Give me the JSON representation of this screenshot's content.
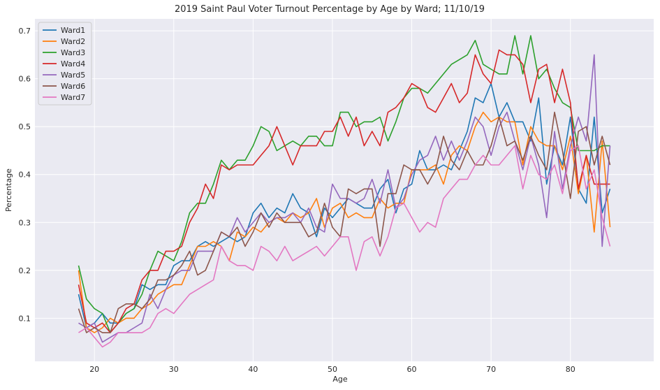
{
  "chart_data": {
    "type": "line",
    "title": "2019 Saint Paul Voter Turnout Percentage by Age by Ward; 11/10/19",
    "xlabel": "Age",
    "ylabel": "Percentage",
    "xlim": [
      12.5,
      90.5
    ],
    "ylim": [
      0.01,
      0.725
    ],
    "x_ticks": [
      20,
      30,
      40,
      50,
      60,
      70,
      80
    ],
    "y_ticks": [
      0.1,
      0.2,
      0.3,
      0.4,
      0.5,
      0.6,
      0.7
    ],
    "grid": true,
    "legend_position": "upper-left",
    "x": [
      18,
      19,
      20,
      21,
      22,
      23,
      24,
      25,
      26,
      27,
      28,
      29,
      30,
      31,
      32,
      33,
      34,
      35,
      36,
      37,
      38,
      39,
      40,
      41,
      42,
      43,
      44,
      45,
      46,
      47,
      48,
      49,
      50,
      51,
      52,
      53,
      54,
      55,
      56,
      57,
      58,
      59,
      60,
      61,
      62,
      63,
      64,
      65,
      66,
      67,
      68,
      69,
      70,
      71,
      72,
      73,
      74,
      75,
      76,
      77,
      78,
      79,
      80,
      81,
      82,
      83,
      84,
      85
    ],
    "series": [
      {
        "name": "Ward1",
        "color": "#1f77b4",
        "values": [
          0.15,
          0.08,
          0.09,
          0.11,
          0.09,
          0.09,
          0.11,
          0.12,
          0.17,
          0.16,
          0.17,
          0.17,
          0.21,
          0.22,
          0.22,
          0.25,
          0.26,
          0.25,
          0.26,
          0.27,
          0.26,
          0.27,
          0.32,
          0.34,
          0.31,
          0.33,
          0.32,
          0.36,
          0.33,
          0.32,
          0.27,
          0.33,
          0.31,
          0.33,
          0.35,
          0.34,
          0.33,
          0.33,
          0.37,
          0.39,
          0.32,
          0.37,
          0.38,
          0.45,
          0.41,
          0.41,
          0.42,
          0.41,
          0.45,
          0.49,
          0.56,
          0.55,
          0.59,
          0.52,
          0.55,
          0.51,
          0.51,
          0.47,
          0.56,
          0.38,
          0.46,
          0.42,
          0.52,
          0.37,
          0.34,
          0.52,
          0.32,
          0.37
        ]
      },
      {
        "name": "Ward2",
        "color": "#ff7f0e",
        "values": [
          0.2,
          0.08,
          0.07,
          0.08,
          0.1,
          0.09,
          0.1,
          0.1,
          0.12,
          0.13,
          0.15,
          0.16,
          0.17,
          0.17,
          0.21,
          0.25,
          0.25,
          0.26,
          0.25,
          0.22,
          0.28,
          0.27,
          0.29,
          0.28,
          0.3,
          0.31,
          0.3,
          0.32,
          0.31,
          0.32,
          0.35,
          0.29,
          0.33,
          0.34,
          0.31,
          0.32,
          0.31,
          0.31,
          0.35,
          0.33,
          0.34,
          0.34,
          0.41,
          0.41,
          0.41,
          0.42,
          0.38,
          0.44,
          0.46,
          0.45,
          0.5,
          0.53,
          0.51,
          0.52,
          0.51,
          0.51,
          0.42,
          0.5,
          0.47,
          0.46,
          0.46,
          0.41,
          0.48,
          0.36,
          0.44,
          0.28,
          0.47,
          0.29
        ]
      },
      {
        "name": "Ward3",
        "color": "#2ca02c",
        "values": [
          0.21,
          0.14,
          0.12,
          0.11,
          0.07,
          0.09,
          0.11,
          0.12,
          0.15,
          0.2,
          0.24,
          0.23,
          0.22,
          0.26,
          0.32,
          0.34,
          0.34,
          0.38,
          0.43,
          0.41,
          0.43,
          0.43,
          0.46,
          0.5,
          0.49,
          0.45,
          0.46,
          0.47,
          0.46,
          0.48,
          0.48,
          0.46,
          0.46,
          0.53,
          0.53,
          0.5,
          0.51,
          0.51,
          0.52,
          0.47,
          0.51,
          0.56,
          0.58,
          0.58,
          0.57,
          0.59,
          0.61,
          0.63,
          0.64,
          0.65,
          0.68,
          0.63,
          0.62,
          0.61,
          0.61,
          0.69,
          0.61,
          0.69,
          0.6,
          0.62,
          0.58,
          0.55,
          0.54,
          0.45,
          0.45,
          0.45,
          0.46,
          0.46
        ]
      },
      {
        "name": "Ward4",
        "color": "#d62728",
        "values": [
          0.17,
          0.09,
          0.08,
          0.09,
          0.07,
          0.09,
          0.12,
          0.13,
          0.18,
          0.2,
          0.2,
          0.24,
          0.24,
          0.25,
          0.3,
          0.33,
          0.38,
          0.35,
          0.42,
          0.41,
          0.42,
          0.42,
          0.42,
          0.44,
          0.46,
          0.5,
          0.46,
          0.42,
          0.46,
          0.46,
          0.46,
          0.49,
          0.49,
          0.52,
          0.48,
          0.52,
          0.46,
          0.49,
          0.46,
          0.53,
          0.54,
          0.56,
          0.59,
          0.58,
          0.54,
          0.53,
          0.56,
          0.59,
          0.55,
          0.57,
          0.65,
          0.61,
          0.59,
          0.66,
          0.65,
          0.65,
          0.63,
          0.55,
          0.62,
          0.63,
          0.55,
          0.62,
          0.55,
          0.37,
          0.44,
          0.38,
          0.38,
          0.38
        ]
      },
      {
        "name": "Ward5",
        "color": "#9467bd",
        "values": [
          0.09,
          0.08,
          0.09,
          0.05,
          0.06,
          0.07,
          0.07,
          0.08,
          0.09,
          0.15,
          0.12,
          0.16,
          0.19,
          0.2,
          0.2,
          0.24,
          0.24,
          0.24,
          0.28,
          0.27,
          0.31,
          0.28,
          0.3,
          0.32,
          0.3,
          0.31,
          0.31,
          0.32,
          0.3,
          0.33,
          0.29,
          0.28,
          0.38,
          0.35,
          0.35,
          0.34,
          0.35,
          0.39,
          0.34,
          0.41,
          0.33,
          0.35,
          0.4,
          0.43,
          0.44,
          0.48,
          0.43,
          0.47,
          0.43,
          0.47,
          0.52,
          0.5,
          0.44,
          0.5,
          0.53,
          0.47,
          0.41,
          0.48,
          0.42,
          0.31,
          0.49,
          0.37,
          0.46,
          0.52,
          0.47,
          0.65,
          0.25,
          0.46
        ]
      },
      {
        "name": "Ward6",
        "color": "#8c564b",
        "values": [
          0.12,
          0.07,
          0.08,
          0.07,
          0.07,
          0.12,
          0.13,
          0.13,
          0.12,
          0.14,
          0.18,
          0.18,
          0.19,
          0.21,
          0.24,
          0.19,
          0.2,
          0.24,
          0.28,
          0.27,
          0.29,
          0.25,
          0.28,
          0.32,
          0.29,
          0.32,
          0.3,
          0.3,
          0.3,
          0.27,
          0.28,
          0.34,
          0.29,
          0.27,
          0.37,
          0.36,
          0.37,
          0.37,
          0.25,
          0.36,
          0.36,
          0.42,
          0.41,
          0.41,
          0.38,
          0.41,
          0.48,
          0.43,
          0.41,
          0.45,
          0.42,
          0.42,
          0.46,
          0.52,
          0.46,
          0.47,
          0.43,
          0.48,
          0.44,
          0.41,
          0.53,
          0.45,
          0.35,
          0.49,
          0.5,
          0.42,
          0.48,
          0.42
        ]
      },
      {
        "name": "Ward7",
        "color": "#e377c2",
        "values": [
          0.07,
          0.08,
          0.06,
          0.04,
          0.05,
          0.07,
          0.07,
          0.07,
          0.07,
          0.08,
          0.11,
          0.12,
          0.11,
          0.13,
          0.15,
          0.16,
          0.17,
          0.18,
          0.25,
          0.22,
          0.21,
          0.21,
          0.2,
          0.25,
          0.24,
          0.22,
          0.25,
          0.22,
          0.23,
          0.24,
          0.25,
          0.23,
          0.25,
          0.27,
          0.27,
          0.2,
          0.26,
          0.27,
          0.23,
          0.27,
          0.33,
          0.34,
          0.31,
          0.28,
          0.3,
          0.29,
          0.35,
          0.37,
          0.39,
          0.39,
          0.42,
          0.44,
          0.42,
          0.42,
          0.44,
          0.46,
          0.37,
          0.44,
          0.4,
          0.39,
          0.42,
          0.36,
          0.45,
          0.46,
          0.37,
          0.41,
          0.31,
          0.25
        ]
      }
    ]
  }
}
